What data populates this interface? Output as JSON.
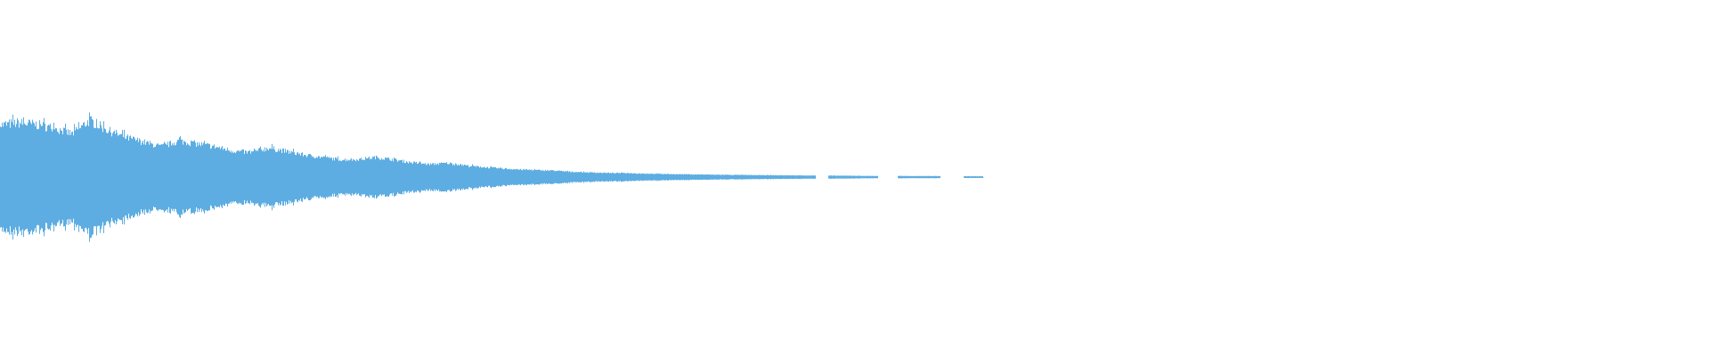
{
  "waveform": {
    "color": "#5dade2",
    "background": "#ffffff",
    "normalized_amplitude_envelope": [
      0.89,
      0.93,
      0.9,
      0.84,
      0.74,
      0.97,
      0.8,
      0.68,
      0.6,
      0.52,
      0.62,
      0.57,
      0.52,
      0.45,
      0.42,
      0.5,
      0.44,
      0.38,
      0.34,
      0.3,
      0.3,
      0.34,
      0.3,
      0.25,
      0.22,
      0.24,
      0.2,
      0.17,
      0.15,
      0.13,
      0.12,
      0.11,
      0.09,
      0.08,
      0.07,
      0.07,
      0.06,
      0.055,
      0.05,
      0.045,
      0.04,
      0.038,
      0.035,
      0.033,
      0.03,
      0.028,
      0.026,
      0.024,
      0.022,
      0.02,
      0.02,
      0.018,
      0.018,
      0.016,
      0.015,
      0.014
    ],
    "channels": 1
  }
}
